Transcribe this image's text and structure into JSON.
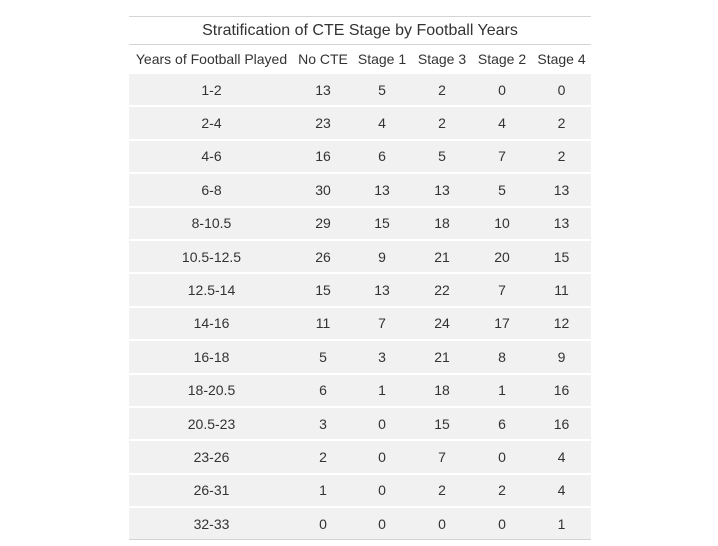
{
  "chart_data": {
    "type": "table",
    "title": "Stratification of CTE Stage by Football Years",
    "columns": [
      "Years of Football Played",
      "No CTE",
      "Stage 1",
      "Stage 3",
      "Stage 2",
      "Stage 4"
    ],
    "rows": [
      [
        "1-2",
        13,
        5,
        2,
        0,
        0
      ],
      [
        "2-4",
        23,
        4,
        2,
        4,
        2
      ],
      [
        "4-6",
        16,
        6,
        5,
        7,
        2
      ],
      [
        "6-8",
        30,
        13,
        13,
        5,
        13
      ],
      [
        "8-10.5",
        29,
        15,
        18,
        10,
        13
      ],
      [
        "10.5-12.5",
        26,
        9,
        21,
        20,
        15
      ],
      [
        "12.5-14",
        15,
        13,
        22,
        7,
        11
      ],
      [
        "14-16",
        11,
        7,
        24,
        17,
        12
      ],
      [
        "16-18",
        5,
        3,
        21,
        8,
        9
      ],
      [
        "18-20.5",
        6,
        1,
        18,
        1,
        16
      ],
      [
        "20.5-23",
        3,
        0,
        15,
        6,
        16
      ],
      [
        "23-26",
        2,
        0,
        7,
        0,
        4
      ],
      [
        "26-31",
        1,
        0,
        2,
        2,
        4
      ],
      [
        "32-33",
        0,
        0,
        0,
        0,
        1
      ]
    ],
    "colors": {
      "row_background": "#f1f1f1",
      "rule": "#d4d4d4",
      "text": "#333333"
    }
  }
}
